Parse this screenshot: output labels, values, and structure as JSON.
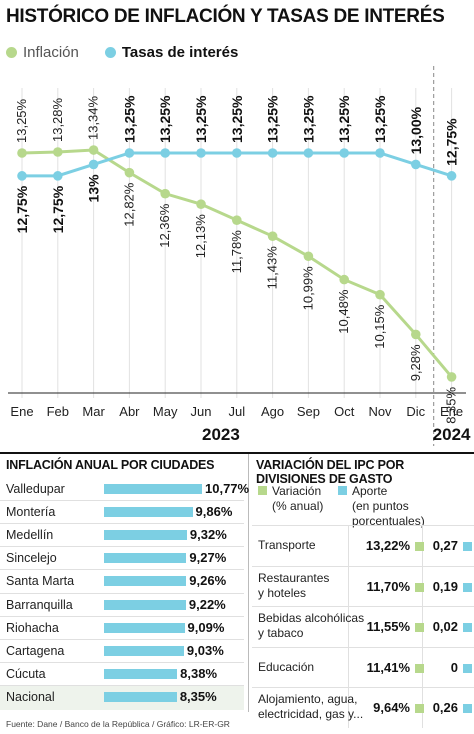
{
  "title": "HISTÓRICO DE INFLACIÓN Y TASAS DE INTERÉS",
  "chart_data": {
    "type": "line",
    "categories": [
      "Ene",
      "Feb",
      "Mar",
      "Abr",
      "May",
      "Jun",
      "Jul",
      "Ago",
      "Sep",
      "Oct",
      "Nov",
      "Dic",
      "Ene"
    ],
    "years": [
      "2023",
      "2024"
    ],
    "series": [
      {
        "name": "Inflación",
        "color": "#b7d88c",
        "values": [
          13.25,
          13.28,
          13.34,
          12.82,
          12.36,
          12.13,
          11.78,
          11.43,
          10.99,
          10.48,
          10.15,
          9.28,
          8.35
        ],
        "labels": [
          "13,25%",
          "13,28%",
          "13,34%",
          "12,82%",
          "12,36%",
          "12,13%",
          "11,78%",
          "11,43%",
          "10,99%",
          "10,48%",
          "10,15%",
          "9,28%",
          "8,35%"
        ]
      },
      {
        "name": "Tasas de interés",
        "color": "#7ccfe3",
        "values": [
          12.75,
          12.75,
          13.0,
          13.25,
          13.25,
          13.25,
          13.25,
          13.25,
          13.25,
          13.25,
          13.25,
          13.0,
          12.75
        ],
        "labels": [
          "12,75%",
          "12,75%",
          "13%",
          "13,25%",
          "13,25%",
          "13,25%",
          "13,25%",
          "13,25%",
          "13,25%",
          "13,25%",
          "13,25%",
          "13,00%",
          "12,75%"
        ]
      }
    ],
    "ylim": [
      8,
      14
    ]
  },
  "cities": {
    "title": "INFLACIÓN ANUAL POR CIUDADES",
    "items": [
      {
        "name": "Valledupar",
        "value": 10.77,
        "label": "10,77%"
      },
      {
        "name": "Montería",
        "value": 9.86,
        "label": "9,86%"
      },
      {
        "name": "Medellín",
        "value": 9.32,
        "label": "9,32%"
      },
      {
        "name": "Sincelejo",
        "value": 9.27,
        "label": "9,27%"
      },
      {
        "name": "Santa Marta",
        "value": 9.26,
        "label": "9,26%"
      },
      {
        "name": "Barranquilla",
        "value": 9.22,
        "label": "9,22%"
      },
      {
        "name": "Riohacha",
        "value": 9.09,
        "label": "9,09%"
      },
      {
        "name": "Cartagena",
        "value": 9.03,
        "label": "9,03%"
      },
      {
        "name": "Cúcuta",
        "value": 8.38,
        "label": "8,38%"
      },
      {
        "name": "Nacional",
        "value": 8.35,
        "label": "8,35%"
      }
    ]
  },
  "ipc": {
    "title": "VARIACIÓN DEL IPC POR DIVISIONES DE GASTO",
    "legend_variacion": [
      "Variación",
      "(% anual)"
    ],
    "legend_aporte": [
      "Aporte",
      "(en puntos porcentuales)"
    ],
    "rows": [
      {
        "category": [
          "Transporte"
        ],
        "variacion": "13,22%",
        "aporte": "0,27"
      },
      {
        "category": [
          "Restaurantes",
          "y hoteles"
        ],
        "variacion": "11,70%",
        "aporte": "0,19"
      },
      {
        "category": [
          "Bebidas alcohólicas",
          "y tabaco"
        ],
        "variacion": "11,55%",
        "aporte": "0,02"
      },
      {
        "category": [
          "Educación"
        ],
        "variacion": "11,41%",
        "aporte": "0"
      },
      {
        "category": [
          "Alojamiento, agua,",
          "electricidad, gas y..."
        ],
        "variacion": "9,64%",
        "aporte": "0,26"
      }
    ]
  },
  "source": "Fuente: Dane / Banco de la República / Gráfico: LR-ER-GR"
}
